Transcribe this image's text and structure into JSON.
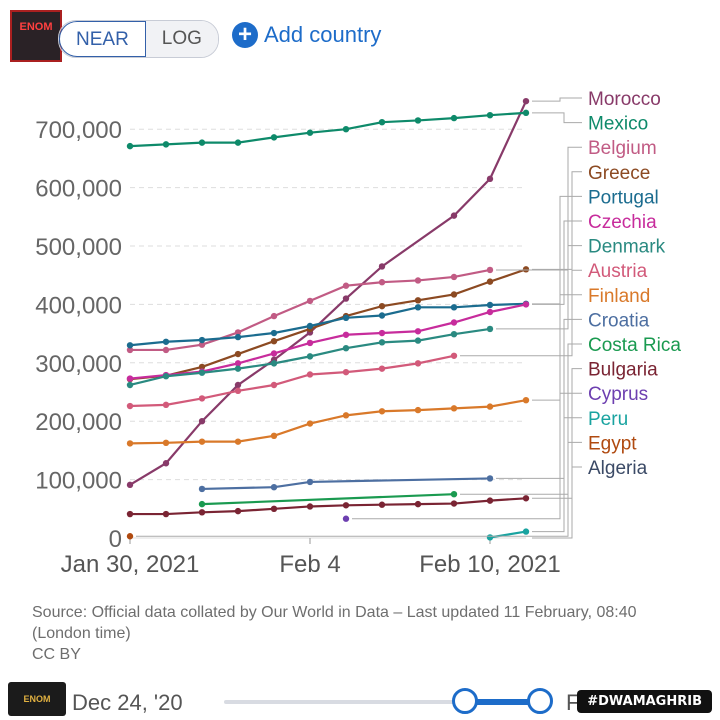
{
  "header": {
    "linear_label": "NEAR",
    "log_label": "LOG",
    "add_country_label": "Add country",
    "logo_text": "ENOM"
  },
  "chart_data": {
    "type": "line",
    "x_labels": [
      "Jan 30, 2021",
      "Feb 4",
      "Feb 10, 2021"
    ],
    "x": [
      "Jan 30",
      "Jan 31",
      "Feb 1",
      "Feb 2",
      "Feb 3",
      "Feb 4",
      "Feb 5",
      "Feb 6",
      "Feb 7",
      "Feb 8",
      "Feb 9",
      "Feb 10"
    ],
    "y_ticks": [
      0,
      100000,
      200000,
      300000,
      400000,
      500000,
      600000,
      700000
    ],
    "y_tick_labels": [
      "0",
      "100,000",
      "200,000",
      "300,000",
      "400,000",
      "500,000",
      "600,000",
      "700,000"
    ],
    "ylim": [
      0,
      750000
    ],
    "grid": "horizontal dashed",
    "legend": "right, labels connected to line ends",
    "series": [
      {
        "name": "Morocco",
        "color": "#883a69",
        "values": [
          91000,
          128000,
          200000,
          262000,
          305000,
          352000,
          410000,
          465000,
          null,
          552000,
          615000,
          748000
        ]
      },
      {
        "name": "Mexico",
        "color": "#0e8a6a",
        "values": [
          671000,
          674000,
          677000,
          677000,
          686000,
          694000,
          700000,
          712000,
          715000,
          719000,
          724000,
          728000
        ]
      },
      {
        "name": "Belgium",
        "color": "#c15b84",
        "values": [
          322000,
          322000,
          331000,
          352000,
          380000,
          406000,
          432000,
          438000,
          441000,
          447000,
          459000,
          null
        ]
      },
      {
        "name": "Greece",
        "color": "#8c4a22",
        "values": [
          272000,
          278000,
          293000,
          315000,
          337000,
          358000,
          380000,
          397000,
          407000,
          417000,
          439000,
          460000
        ]
      },
      {
        "name": "Portugal",
        "color": "#1b6c8f",
        "values": [
          330000,
          336000,
          339000,
          344000,
          351000,
          363000,
          377000,
          381000,
          395000,
          395000,
          399000,
          401000
        ]
      },
      {
        "name": "Czechia",
        "color": "#c72c9c",
        "values": [
          273000,
          279000,
          285000,
          299000,
          316000,
          334000,
          348000,
          351000,
          354000,
          369000,
          387000,
          400000
        ]
      },
      {
        "name": "Denmark",
        "color": "#2a8a81",
        "values": [
          262000,
          277000,
          283000,
          290000,
          299000,
          311000,
          325000,
          335000,
          338000,
          349000,
          358000,
          null
        ]
      },
      {
        "name": "Austria",
        "color": "#d25a7a",
        "values": [
          226000,
          228000,
          239000,
          252000,
          262000,
          280000,
          284000,
          290000,
          299000,
          312000,
          null,
          null
        ]
      },
      {
        "name": "Finland",
        "color": "#d9792a",
        "values": [
          162000,
          163000,
          165000,
          165000,
          175000,
          196000,
          210000,
          217000,
          219000,
          222000,
          225000,
          236000
        ]
      },
      {
        "name": "Croatia",
        "color": "#4d6fa1",
        "values": [
          null,
          null,
          84000,
          null,
          87000,
          96000,
          null,
          null,
          null,
          null,
          102000,
          null
        ]
      },
      {
        "name": "Costa Rica",
        "color": "#1a9a50",
        "values": [
          null,
          null,
          58000,
          null,
          null,
          null,
          null,
          null,
          null,
          75000,
          null,
          null
        ]
      },
      {
        "name": "Bulgaria",
        "color": "#7a2433",
        "values": [
          41000,
          41000,
          44000,
          46000,
          50000,
          54000,
          56000,
          57000,
          58000,
          59000,
          64000,
          68000
        ]
      },
      {
        "name": "Cyprus",
        "color": "#6d3fb0",
        "values": [
          null,
          null,
          null,
          null,
          null,
          null,
          33000,
          null,
          null,
          null,
          null,
          null
        ]
      },
      {
        "name": "Peru",
        "color": "#19a3a0",
        "values": [
          null,
          null,
          null,
          null,
          null,
          null,
          null,
          null,
          null,
          null,
          1000,
          11000
        ]
      },
      {
        "name": "Egypt",
        "color": "#b04a10",
        "values": [
          3000,
          null,
          null,
          null,
          null,
          null,
          null,
          null,
          null,
          null,
          null,
          null
        ]
      },
      {
        "name": "Algeria",
        "color": "#3b4a66",
        "values": [
          null,
          null,
          null,
          null,
          null,
          null,
          null,
          null,
          null,
          null,
          null,
          null
        ]
      }
    ]
  },
  "source": {
    "text": "Source: Official data collated by Our World in Data – Last updated 11 February, 08:40 (London time)",
    "license": "CC BY"
  },
  "timeline": {
    "start_label": "Dec 24, '20",
    "end_label": "F"
  },
  "watermark": "#DWAMAGHRIB",
  "badge": "ENOM"
}
